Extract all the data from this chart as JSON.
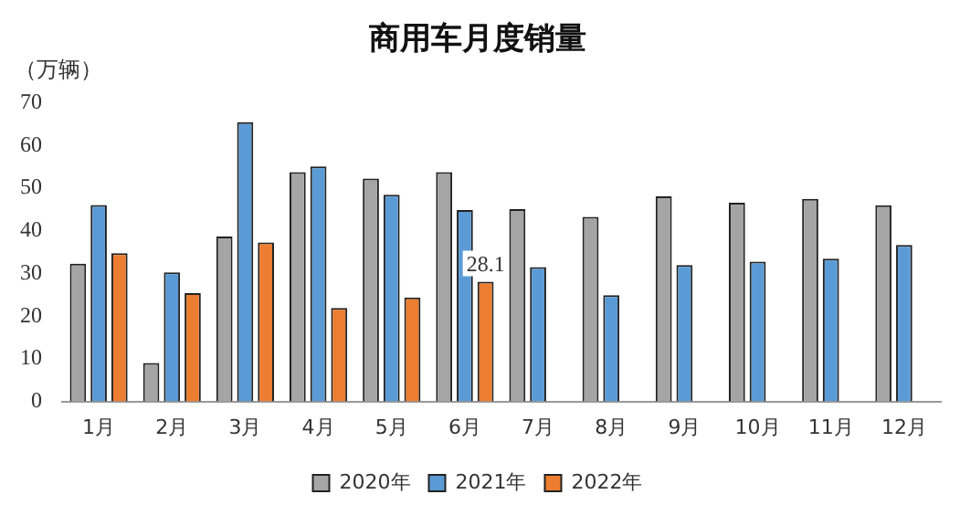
{
  "chart_data": {
    "type": "bar",
    "title": "商用车月度销量",
    "ylabel": "（万辆）",
    "categories": [
      "1月",
      "2月",
      "3月",
      "4月",
      "5月",
      "6月",
      "7月",
      "8月",
      "9月",
      "10月",
      "11月",
      "12月"
    ],
    "series": [
      {
        "name": "2020年",
        "color": "#a5a5a5",
        "values": [
          32.3,
          9,
          38.7,
          53.8,
          52.3,
          53.8,
          45.1,
          43.3,
          48.1,
          46.6,
          47.5,
          46
        ]
      },
      {
        "name": "2021年",
        "color": "#5b9bd5",
        "values": [
          46.1,
          30.3,
          65.5,
          55.1,
          48.5,
          44.9,
          31.5,
          24.9,
          32,
          32.8,
          33.5,
          36.7
        ]
      },
      {
        "name": "2022年",
        "color": "#ed7d31",
        "values": [
          34.8,
          25.4,
          37.3,
          21.9,
          24.4,
          28.1,
          null,
          null,
          null,
          null,
          null,
          null
        ],
        "value_labels": [
          null,
          null,
          null,
          null,
          null,
          "28.1",
          null,
          null,
          null,
          null,
          null,
          null
        ]
      }
    ],
    "ylim": [
      0,
      70
    ],
    "yticks": [
      0,
      10,
      20,
      30,
      40,
      50,
      60,
      70
    ],
    "grid": false,
    "legend": "bottom"
  }
}
